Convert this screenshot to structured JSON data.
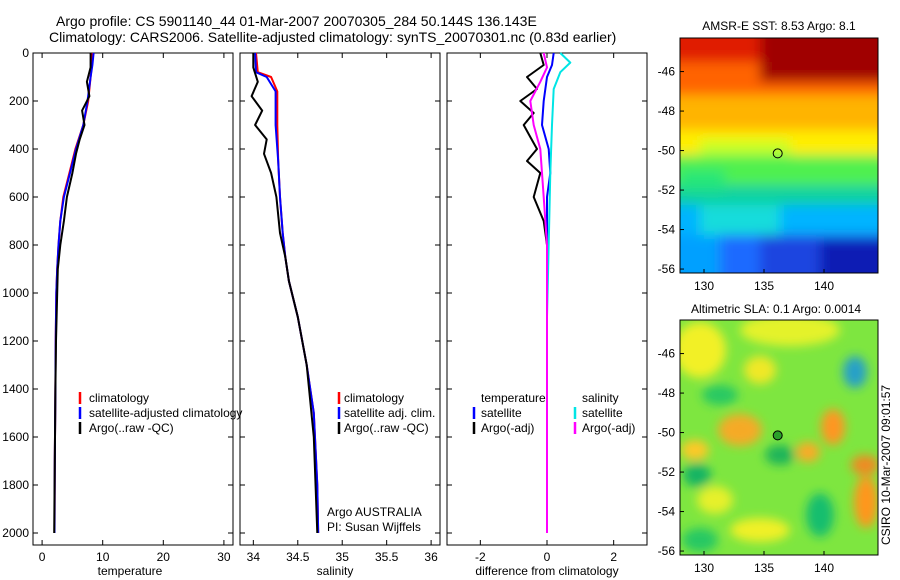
{
  "figure": {
    "title_line1": "Argo profile: CS 5901140_44 01-Mar-2007 20070305_284 50.144S 136.143E",
    "title_line2": "Climatology: CARS2006. Satellite-adjusted climatology: synTS_20070301.nc (0.83d earlier)",
    "credit": "CSIRO 10-Mar-2007 09:01:57",
    "colors": {
      "climatology": "#ff0000",
      "satellite": "#0000ff",
      "argo": "#000000",
      "sat_salinity_diff": "#00e5e5",
      "argo_salinity_diff": "#ff00ff"
    }
  },
  "chart_data": [
    {
      "type": "line",
      "panel": "temperature",
      "xlabel": "temperature",
      "ylabel": "",
      "xlim": [
        -1.5,
        31.5
      ],
      "ylim": [
        2050,
        0
      ],
      "xticks": [
        0,
        10,
        20,
        30
      ],
      "yticks": [
        0,
        200,
        400,
        600,
        800,
        1000,
        1200,
        1400,
        1600,
        1800,
        2000
      ],
      "legend": {
        "placement": "lower-right",
        "entries": [
          "climatology",
          "satellite-adjusted climatology",
          "Argo(..raw -QC)"
        ]
      },
      "series": [
        {
          "name": "climatology",
          "color": "#ff0000",
          "x": [
            8.3,
            8.2,
            8.0,
            7.6,
            6.8,
            5.5,
            4.5,
            3.5,
            3.0,
            2.7,
            2.5,
            2.35,
            2.25,
            2.2,
            2.1,
            2.05
          ],
          "y": [
            0,
            50,
            100,
            200,
            300,
            400,
            500,
            600,
            700,
            800,
            900,
            1000,
            1200,
            1400,
            1700,
            2000
          ]
        },
        {
          "name": "satellite-adjusted climatology",
          "color": "#0000ff",
          "x": [
            8.5,
            8.3,
            8.0,
            7.5,
            6.8,
            5.6,
            4.6,
            3.6,
            3.0,
            2.7,
            2.5,
            2.35,
            2.25,
            2.2,
            2.1,
            2.05
          ],
          "y": [
            0,
            50,
            100,
            200,
            300,
            400,
            500,
            600,
            700,
            800,
            900,
            1000,
            1200,
            1400,
            1700,
            2000
          ]
        },
        {
          "name": "Argo(..raw -QC)",
          "color": "#000000",
          "x": [
            8.0,
            8.0,
            7.4,
            7.8,
            6.6,
            7.0,
            6.2,
            5.6,
            5.0,
            4.1,
            3.6,
            3.0,
            2.6,
            2.5,
            2.3,
            2.2,
            2.1,
            2.0
          ],
          "y": [
            0,
            60,
            120,
            180,
            240,
            300,
            360,
            420,
            500,
            600,
            700,
            800,
            900,
            1000,
            1200,
            1400,
            1700,
            2000
          ]
        }
      ]
    },
    {
      "type": "line",
      "panel": "salinity",
      "xlabel": "salinity",
      "ylabel": "",
      "xlim": [
        33.85,
        36.1
      ],
      "ylim": [
        2050,
        0
      ],
      "xticks": [
        34,
        34.5,
        35,
        35.5,
        36
      ],
      "xticklabels": [
        "34",
        "34.5",
        "35",
        "35.5",
        "36"
      ],
      "legend": {
        "placement": "lower-right",
        "entries": [
          "climatology",
          "satellite adj. clim.",
          "Argo(..raw -QC)"
        ]
      },
      "annotations": [
        "Argo AUSTRALIA",
        "PI: Susan Wijffels"
      ],
      "series": [
        {
          "name": "climatology",
          "color": "#ff0000",
          "x": [
            34.03,
            34.05,
            34.2,
            34.27,
            34.27,
            34.28,
            34.3,
            34.33,
            34.36,
            34.4,
            34.5,
            34.6,
            34.68,
            34.72,
            34.73
          ],
          "y": [
            0,
            80,
            100,
            160,
            300,
            450,
            600,
            750,
            850,
            950,
            1100,
            1300,
            1500,
            1800,
            2000
          ]
        },
        {
          "name": "satellite adj. clim.",
          "color": "#0000ff",
          "x": [
            34.02,
            34.03,
            34.15,
            34.25,
            34.25,
            34.28,
            34.3,
            34.33,
            34.36,
            34.4,
            34.5,
            34.6,
            34.68,
            34.72,
            34.73
          ],
          "y": [
            0,
            80,
            100,
            160,
            300,
            450,
            600,
            750,
            850,
            950,
            1100,
            1300,
            1500,
            1800,
            2000
          ]
        },
        {
          "name": "Argo(..raw -QC)",
          "color": "#000000",
          "x": [
            34.0,
            34.0,
            34.05,
            33.98,
            34.1,
            34.02,
            34.15,
            34.12,
            34.2,
            34.26,
            34.3,
            34.36,
            34.4,
            34.5,
            34.6,
            34.68,
            34.72
          ],
          "y": [
            0,
            60,
            120,
            180,
            240,
            300,
            360,
            420,
            500,
            600,
            750,
            850,
            950,
            1100,
            1300,
            1600,
            2000
          ]
        }
      ]
    },
    {
      "type": "line",
      "panel": "difference",
      "xlabel": "difference from climatology",
      "ylabel": "",
      "xlim": [
        -3.0,
        3.0
      ],
      "ylim": [
        2050,
        0
      ],
      "xticks": [
        -2,
        0,
        2
      ],
      "legend": {
        "placement": "lower-center",
        "headers": [
          "temperature",
          "salinity"
        ],
        "entries": [
          "satellite",
          "Argo(-adj)",
          "satellite",
          "Argo(-adj)"
        ]
      },
      "series": [
        {
          "name": "temperature satellite",
          "color": "#0000ff",
          "x": [
            0.2,
            0.15,
            0.0,
            -0.1,
            -0.15,
            0.05,
            0.1,
            0.0,
            0.0,
            0.0,
            0.0
          ],
          "y": [
            0,
            50,
            100,
            200,
            300,
            400,
            500,
            600,
            800,
            1200,
            2000
          ]
        },
        {
          "name": "temperature Argo(-adj)",
          "color": "#000000",
          "x": [
            -0.2,
            -0.1,
            -0.6,
            -0.3,
            -0.8,
            -0.4,
            -0.7,
            -0.5,
            -0.3,
            -0.6,
            -0.2,
            -0.4,
            -0.1,
            0.0,
            0.0,
            0.0
          ],
          "y": [
            0,
            50,
            100,
            150,
            200,
            250,
            300,
            350,
            400,
            450,
            500,
            600,
            700,
            800,
            1200,
            2000
          ]
        },
        {
          "name": "salinity satellite",
          "color": "#00e5e5",
          "x": [
            0.4,
            0.7,
            0.4,
            0.2,
            0.15,
            0.1,
            0.05,
            0.0,
            0.0,
            0.0
          ],
          "y": [
            0,
            40,
            80,
            150,
            300,
            500,
            800,
            1100,
            1500,
            2000
          ]
        },
        {
          "name": "salinity Argo(-adj)",
          "color": "#ff00ff",
          "x": [
            -0.1,
            0.0,
            -0.2,
            -0.5,
            -0.4,
            -0.2,
            -0.15,
            -0.1,
            0.0,
            0.0
          ],
          "y": [
            0,
            60,
            120,
            200,
            300,
            400,
            500,
            600,
            800,
            2000
          ]
        }
      ]
    },
    {
      "type": "heatmap",
      "panel": "sst-map",
      "title": "AMSR-E SST: 8.53  Argo: 8.1",
      "xlim": [
        128,
        144.5
      ],
      "ylim": [
        -56.2,
        -44.3
      ],
      "xticks": [
        130,
        135,
        140
      ],
      "yticks": [
        -46,
        -48,
        -50,
        -52,
        -54,
        -56
      ],
      "marker": {
        "lon": 136.143,
        "lat": -50.144
      }
    },
    {
      "type": "heatmap",
      "panel": "sla-map",
      "title": "Altimetric SLA: 0.1  Argo: 0.0014",
      "xlim": [
        128,
        144.5
      ],
      "ylim": [
        -56.2,
        -44.3
      ],
      "xticks": [
        130,
        135,
        140
      ],
      "yticks": [
        -46,
        -48,
        -50,
        -52,
        -54,
        -56
      ],
      "marker": {
        "lon": 136.143,
        "lat": -50.144
      }
    }
  ]
}
